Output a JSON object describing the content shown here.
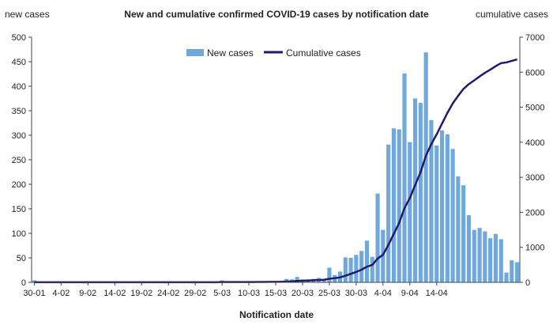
{
  "chart_data": {
    "type": "bar+line",
    "title": "New and cumulative confirmed COVID-19 cases by notification date",
    "xlabel": "Notification date",
    "ylabel_left": "new cases",
    "ylabel_right": "cumulative cases",
    "ylim_left": [
      0,
      500
    ],
    "ylim_right": [
      0,
      7000
    ],
    "yticks_left": [
      "0",
      "50",
      "100",
      "150",
      "200",
      "250",
      "300",
      "350",
      "400",
      "450",
      "500"
    ],
    "yticks_right": [
      "0",
      "1000",
      "2000",
      "3000",
      "4000",
      "5000",
      "6000",
      "7000"
    ],
    "xtick_labels": [
      "30-01",
      "4-02",
      "9-02",
      "14-02",
      "19-02",
      "24-02",
      "29-02",
      "5-03",
      "10-03",
      "15-03",
      "20-03",
      "25-03",
      "30-03",
      "4-04",
      "9-04",
      "14-04"
    ],
    "legend": {
      "placement": "top-center",
      "bar_label": "New cases",
      "line_label": "Cumulative cases"
    },
    "colors": {
      "bar": "#6fa8dc",
      "line": "#1f1a6e"
    },
    "series": [
      {
        "name": "New cases",
        "kind": "bar",
        "values": [
          4,
          0,
          0,
          0,
          0,
          0,
          0,
          0,
          0,
          0,
          0,
          0,
          0,
          0,
          0,
          0,
          0,
          0,
          0,
          0,
          0,
          0,
          0,
          0,
          0,
          0,
          0,
          0,
          0,
          0,
          0,
          0,
          0,
          0,
          0,
          4,
          0,
          1,
          0,
          0,
          0,
          0,
          2,
          1,
          1,
          0,
          3,
          7,
          6,
          11,
          6,
          6,
          7,
          9,
          5,
          30,
          15,
          22,
          51,
          50,
          56,
          64,
          85,
          52,
          181,
          107,
          281,
          314,
          312,
          426,
          286,
          375,
          366,
          469,
          331,
          279,
          310,
          302,
          272,
          216,
          198,
          137,
          107,
          111,
          104,
          90,
          99,
          88,
          20,
          45,
          41
        ]
      },
      {
        "name": "Cumulative cases",
        "kind": "line",
        "values": [
          4,
          4,
          4,
          4,
          4,
          4,
          4,
          4,
          4,
          4,
          4,
          4,
          4,
          4,
          4,
          4,
          4,
          4,
          4,
          4,
          4,
          4,
          4,
          4,
          4,
          4,
          4,
          4,
          4,
          4,
          4,
          4,
          4,
          4,
          4,
          8,
          8,
          9,
          9,
          9,
          9,
          9,
          11,
          12,
          13,
          13,
          16,
          23,
          29,
          40,
          46,
          52,
          59,
          68,
          73,
          103,
          118,
          140,
          191,
          241,
          297,
          361,
          446,
          498,
          679,
          786,
          1067,
          1381,
          1693,
          2119,
          2405,
          2780,
          3146,
          3615,
          3946,
          4225,
          4535,
          4837,
          5109,
          5325,
          5523,
          5660,
          5767,
          5878,
          5982,
          6072,
          6171,
          6259,
          6279,
          6324,
          6365
        ]
      }
    ]
  }
}
